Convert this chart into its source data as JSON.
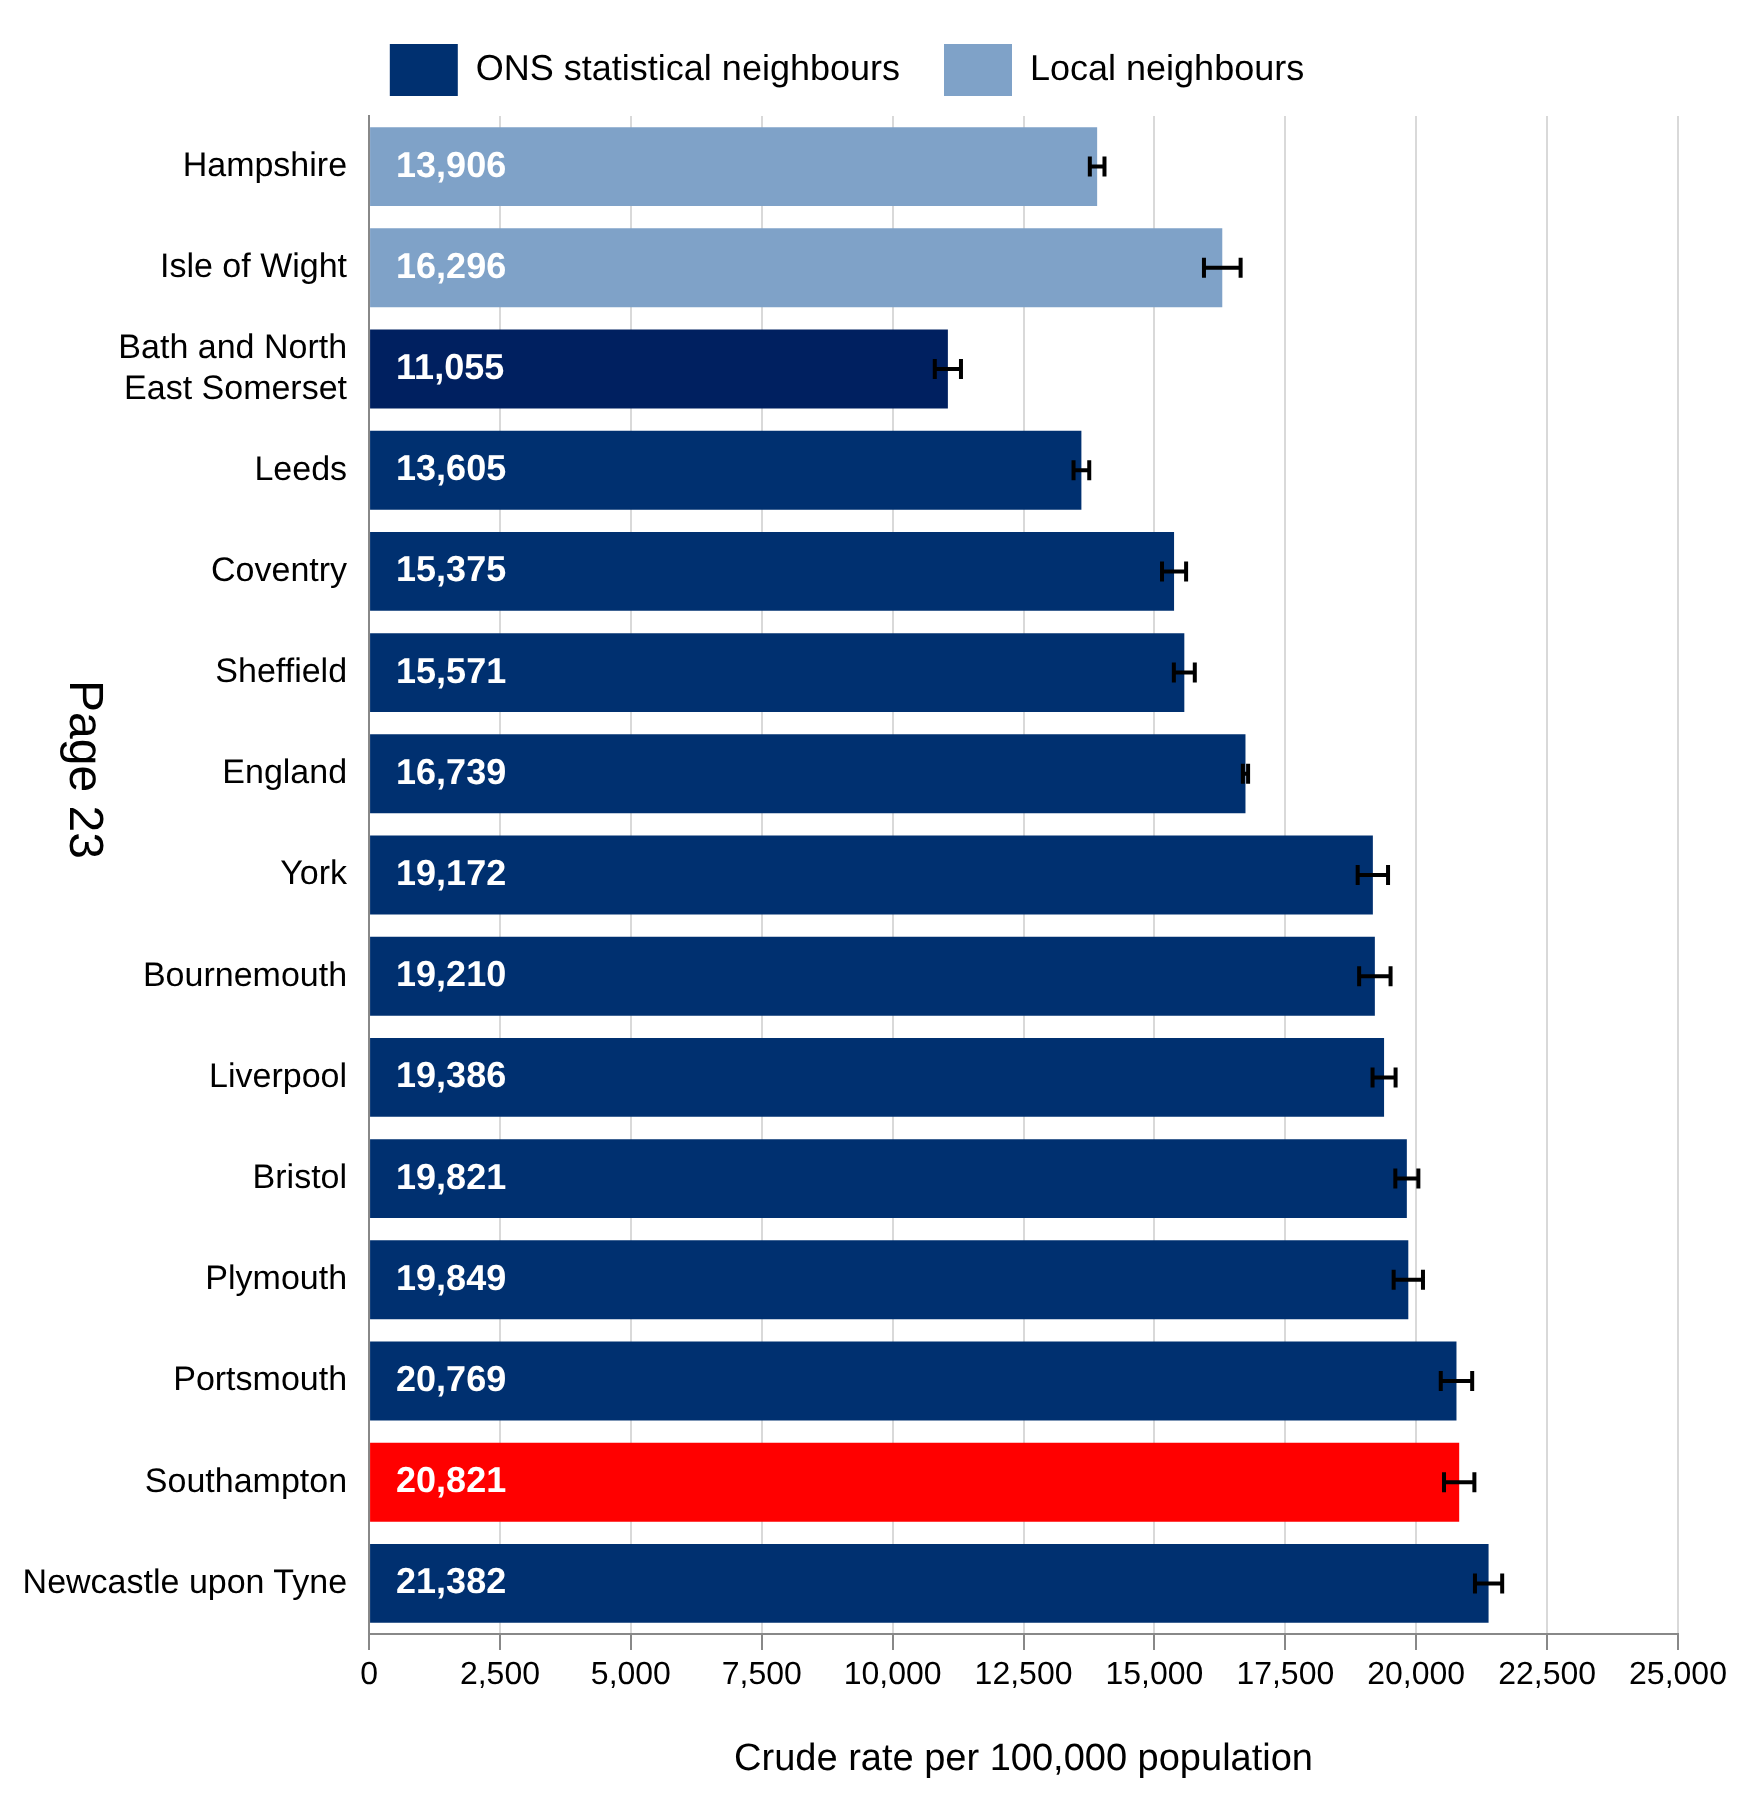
{
  "chart_data": {
    "type": "bar",
    "orientation": "horizontal",
    "categories": [
      "Hampshire",
      "Isle of Wight",
      "Bath and North East Somerset",
      "Leeds",
      "Coventry",
      "Sheffield",
      "England",
      "York",
      "Bournemouth",
      "Liverpool",
      "Bristol",
      "Plymouth",
      "Portsmouth",
      "Southampton",
      "Newcastle upon Tyne"
    ],
    "series": [
      {
        "name": "ONS statistical neighbours",
        "color": "#003070",
        "colors": [
          null,
          null,
          "#002060",
          "#003070",
          "#003070",
          "#003070",
          "#003070",
          "#003070",
          "#003070",
          "#003070",
          "#003070",
          "#003070",
          "#003070",
          "#ff0000",
          "#003070"
        ],
        "values": [
          null,
          null,
          11055,
          13605,
          15375,
          15571,
          16739,
          19172,
          19210,
          19386,
          19821,
          19849,
          20769,
          20821,
          21382
        ],
        "value_labels": [
          null,
          null,
          "11,055",
          "13,605",
          "15,375",
          "15,571",
          "16,739",
          "19,172",
          "19,210",
          "19,386",
          "19,821",
          "19,849",
          "20,769",
          "20,821",
          "21,382"
        ],
        "errors": [
          null,
          null,
          250,
          150,
          230,
          200,
          50,
          290,
          300,
          220,
          220,
          280,
          300,
          290,
          260
        ]
      },
      {
        "name": "Local neighbours",
        "color": "#7fa2c8",
        "values": [
          13906,
          16296,
          null,
          null,
          null,
          null,
          null,
          null,
          null,
          null,
          null,
          null,
          null,
          null,
          null
        ],
        "value_labels": [
          "13,906",
          "16,296",
          null,
          null,
          null,
          null,
          null,
          null,
          null,
          null,
          null,
          null,
          null,
          null,
          null
        ],
        "errors": [
          140,
          350,
          null,
          null,
          null,
          null,
          null,
          null,
          null,
          null,
          null,
          null,
          null,
          null,
          null
        ]
      }
    ],
    "xlim": [
      0,
      25000
    ],
    "xticks": [
      0,
      {
        "value": 2500,
        "label": "2,500"
      },
      {
        "value": 5000,
        "label": "5,000"
      },
      {
        "value": 7500,
        "label": "7,500"
      },
      {
        "value": 10000,
        "label": "10,000"
      },
      {
        "value": 12500,
        "label": "12,500"
      },
      {
        "value": 15000,
        "label": "15,000"
      },
      {
        "value": 17500,
        "label": "17,500"
      },
      {
        "value": 20000,
        "label": "20,000"
      },
      {
        "value": 22500,
        "label": "22,500"
      },
      {
        "value": 25000,
        "label": "25,000"
      }
    ],
    "xlabel": "Crude rate per 100,000 population",
    "annotations": [
      "Page 23"
    ],
    "grid": "x",
    "legend": "top"
  }
}
